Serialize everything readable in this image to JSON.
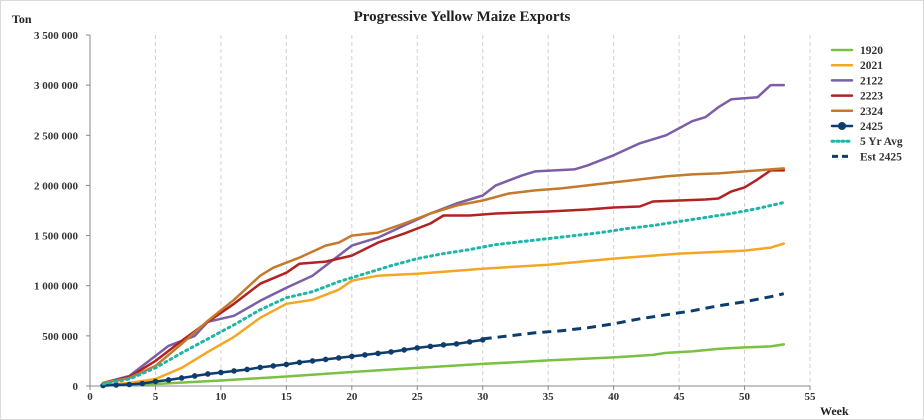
{
  "chart_data": {
    "type": "line",
    "title": "Progressive Yellow Maize Exports",
    "ylabel": "Ton",
    "xlabel": "Week",
    "xlim": [
      0,
      55
    ],
    "ylim": [
      0,
      3500000
    ],
    "x_ticks": [
      "0",
      "5",
      "10",
      "15",
      "20",
      "25",
      "30",
      "35",
      "40",
      "45",
      "50",
      "55"
    ],
    "y_ticks": [
      "0",
      "500 000",
      "1 000 000",
      "1 500 000",
      "2 000 000",
      "2 500 000",
      "3 000 000",
      "3 500 000"
    ],
    "y_tick_values": [
      0,
      500000,
      1000000,
      1500000,
      2000000,
      2500000,
      3000000,
      3500000
    ],
    "grid": "vertical dashed",
    "legend_position": "right",
    "series": [
      {
        "name": "1920",
        "color": "#7ac143",
        "style": "solid",
        "points": [
          [
            1,
            5000
          ],
          [
            5,
            20000
          ],
          [
            10,
            55000
          ],
          [
            15,
            95000
          ],
          [
            20,
            140000
          ],
          [
            25,
            180000
          ],
          [
            30,
            220000
          ],
          [
            33,
            240000
          ],
          [
            35,
            255000
          ],
          [
            40,
            285000
          ],
          [
            43,
            310000
          ],
          [
            44,
            330000
          ],
          [
            46,
            345000
          ],
          [
            48,
            370000
          ],
          [
            50,
            385000
          ],
          [
            52,
            395000
          ],
          [
            53,
            415000
          ]
        ]
      },
      {
        "name": "2021",
        "color": "#f5a623",
        "style": "solid",
        "points": [
          [
            1,
            10000
          ],
          [
            3,
            30000
          ],
          [
            5,
            70000
          ],
          [
            7,
            180000
          ],
          [
            9,
            340000
          ],
          [
            11,
            490000
          ],
          [
            13,
            680000
          ],
          [
            15,
            820000
          ],
          [
            17,
            860000
          ],
          [
            19,
            960000
          ],
          [
            20,
            1050000
          ],
          [
            22,
            1100000
          ],
          [
            25,
            1120000
          ],
          [
            30,
            1170000
          ],
          [
            35,
            1210000
          ],
          [
            40,
            1270000
          ],
          [
            45,
            1320000
          ],
          [
            50,
            1350000
          ],
          [
            52,
            1380000
          ],
          [
            53,
            1420000
          ]
        ]
      },
      {
        "name": "2122",
        "color": "#7b5ea7",
        "style": "solid",
        "points": [
          [
            1,
            30000
          ],
          [
            3,
            100000
          ],
          [
            5,
            300000
          ],
          [
            6,
            400000
          ],
          [
            8,
            500000
          ],
          [
            9,
            640000
          ],
          [
            11,
            700000
          ],
          [
            13,
            850000
          ],
          [
            15,
            980000
          ],
          [
            17,
            1100000
          ],
          [
            19,
            1300000
          ],
          [
            20,
            1400000
          ],
          [
            22,
            1480000
          ],
          [
            24,
            1600000
          ],
          [
            26,
            1720000
          ],
          [
            28,
            1820000
          ],
          [
            30,
            1900000
          ],
          [
            31,
            2000000
          ],
          [
            33,
            2100000
          ],
          [
            34,
            2140000
          ],
          [
            37,
            2160000
          ],
          [
            38,
            2200000
          ],
          [
            40,
            2300000
          ],
          [
            42,
            2420000
          ],
          [
            44,
            2500000
          ],
          [
            46,
            2640000
          ],
          [
            47,
            2680000
          ],
          [
            48,
            2780000
          ],
          [
            49,
            2860000
          ],
          [
            51,
            2880000
          ],
          [
            52,
            3000000
          ],
          [
            53,
            3000000
          ]
        ]
      },
      {
        "name": "2223",
        "color": "#b22222",
        "style": "solid",
        "points": [
          [
            1,
            30000
          ],
          [
            3,
            90000
          ],
          [
            5,
            250000
          ],
          [
            7,
            450000
          ],
          [
            9,
            640000
          ],
          [
            11,
            820000
          ],
          [
            13,
            1020000
          ],
          [
            15,
            1130000
          ],
          [
            16,
            1220000
          ],
          [
            18,
            1240000
          ],
          [
            20,
            1300000
          ],
          [
            22,
            1430000
          ],
          [
            24,
            1520000
          ],
          [
            26,
            1620000
          ],
          [
            27,
            1700000
          ],
          [
            29,
            1700000
          ],
          [
            31,
            1720000
          ],
          [
            33,
            1730000
          ],
          [
            35,
            1740000
          ],
          [
            38,
            1760000
          ],
          [
            40,
            1780000
          ],
          [
            42,
            1790000
          ],
          [
            43,
            1840000
          ],
          [
            45,
            1850000
          ],
          [
            47,
            1860000
          ],
          [
            48,
            1870000
          ],
          [
            49,
            1940000
          ],
          [
            50,
            1980000
          ],
          [
            51,
            2060000
          ],
          [
            52,
            2150000
          ],
          [
            53,
            2150000
          ]
        ]
      },
      {
        "name": "2324",
        "color": "#c47a2c",
        "style": "solid",
        "points": [
          [
            1,
            30000
          ],
          [
            3,
            80000
          ],
          [
            5,
            200000
          ],
          [
            7,
            420000
          ],
          [
            9,
            650000
          ],
          [
            11,
            860000
          ],
          [
            13,
            1100000
          ],
          [
            14,
            1180000
          ],
          [
            16,
            1280000
          ],
          [
            18,
            1400000
          ],
          [
            19,
            1430000
          ],
          [
            20,
            1500000
          ],
          [
            22,
            1530000
          ],
          [
            24,
            1620000
          ],
          [
            26,
            1720000
          ],
          [
            28,
            1800000
          ],
          [
            30,
            1850000
          ],
          [
            32,
            1920000
          ],
          [
            34,
            1950000
          ],
          [
            36,
            1970000
          ],
          [
            38,
            2000000
          ],
          [
            40,
            2030000
          ],
          [
            42,
            2060000
          ],
          [
            44,
            2090000
          ],
          [
            46,
            2110000
          ],
          [
            48,
            2120000
          ],
          [
            50,
            2140000
          ],
          [
            52,
            2160000
          ],
          [
            53,
            2170000
          ]
        ]
      },
      {
        "name": "2425",
        "color": "#0d3c6e",
        "style": "solid-markers",
        "points": [
          [
            1,
            5000
          ],
          [
            2,
            10000
          ],
          [
            3,
            15000
          ],
          [
            4,
            25000
          ],
          [
            5,
            45000
          ],
          [
            6,
            60000
          ],
          [
            7,
            80000
          ],
          [
            8,
            100000
          ],
          [
            9,
            120000
          ],
          [
            10,
            135000
          ],
          [
            11,
            150000
          ],
          [
            12,
            165000
          ],
          [
            13,
            185000
          ],
          [
            14,
            200000
          ],
          [
            15,
            215000
          ],
          [
            16,
            235000
          ],
          [
            17,
            250000
          ],
          [
            18,
            265000
          ],
          [
            19,
            280000
          ],
          [
            20,
            295000
          ],
          [
            21,
            310000
          ],
          [
            22,
            325000
          ],
          [
            23,
            340000
          ],
          [
            24,
            360000
          ],
          [
            25,
            380000
          ],
          [
            26,
            395000
          ],
          [
            27,
            410000
          ],
          [
            28,
            420000
          ],
          [
            29,
            440000
          ],
          [
            30,
            460000
          ]
        ]
      },
      {
        "name": "5 Yr Avg",
        "color": "#1fb5a8",
        "style": "dotted",
        "points": [
          [
            1,
            20000
          ],
          [
            3,
            70000
          ],
          [
            5,
            180000
          ],
          [
            7,
            330000
          ],
          [
            9,
            470000
          ],
          [
            11,
            610000
          ],
          [
            13,
            760000
          ],
          [
            15,
            880000
          ],
          [
            17,
            940000
          ],
          [
            19,
            1040000
          ],
          [
            21,
            1120000
          ],
          [
            23,
            1200000
          ],
          [
            25,
            1270000
          ],
          [
            27,
            1320000
          ],
          [
            29,
            1360000
          ],
          [
            31,
            1410000
          ],
          [
            33,
            1440000
          ],
          [
            35,
            1470000
          ],
          [
            37,
            1500000
          ],
          [
            39,
            1530000
          ],
          [
            41,
            1570000
          ],
          [
            43,
            1600000
          ],
          [
            45,
            1640000
          ],
          [
            47,
            1680000
          ],
          [
            49,
            1720000
          ],
          [
            51,
            1770000
          ],
          [
            53,
            1830000
          ]
        ]
      },
      {
        "name": "Est 2425",
        "color": "#0d3c6e",
        "style": "dashed",
        "points": [
          [
            30,
            470000
          ],
          [
            32,
            500000
          ],
          [
            34,
            530000
          ],
          [
            36,
            550000
          ],
          [
            38,
            580000
          ],
          [
            40,
            620000
          ],
          [
            42,
            670000
          ],
          [
            44,
            710000
          ],
          [
            46,
            750000
          ],
          [
            48,
            800000
          ],
          [
            50,
            840000
          ],
          [
            52,
            890000
          ],
          [
            53,
            920000
          ]
        ]
      }
    ]
  }
}
